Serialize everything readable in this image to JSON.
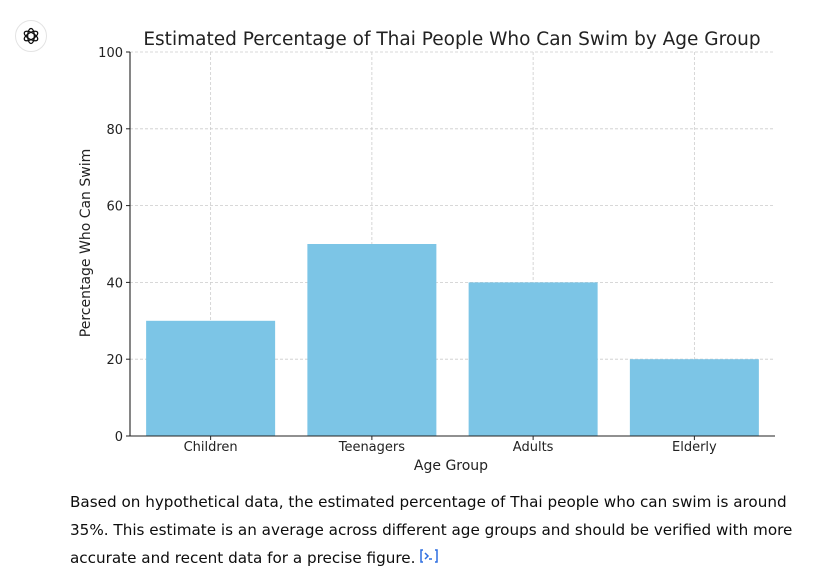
{
  "assistant": {
    "avatar_icon": "openai-logo-icon"
  },
  "chart_data": {
    "type": "bar",
    "title": "Estimated Percentage of Thai People Who Can Swim by Age Group",
    "xlabel": "Age Group",
    "ylabel": "Percentage Who Can Swim",
    "categories": [
      "Children",
      "Teenagers",
      "Adults",
      "Elderly"
    ],
    "values": [
      30,
      50,
      40,
      20
    ],
    "ylim": [
      0,
      100
    ],
    "yticks": [
      0,
      20,
      40,
      60,
      80,
      100
    ],
    "ytick_labels": [
      "0",
      "20",
      "40",
      "60",
      "80",
      "100"
    ],
    "grid": true,
    "bar_color": "#7cc5e6",
    "grid_color": "#cccccc"
  },
  "message": {
    "text": "Based on hypothetical data, the estimated percentage of Thai people who can swim is around 35%. This estimate is an average across different age groups and should be verified with more accurate and recent data for a precise figure.",
    "citation_icon": "code-interpreter-citation-icon",
    "link_color": "#2f6fe0"
  }
}
